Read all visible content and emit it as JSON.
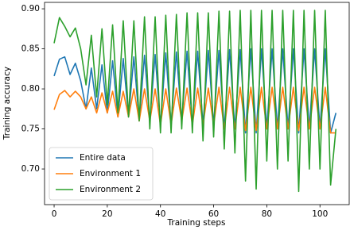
{
  "chart_data": {
    "type": "line",
    "x_label": "Training steps",
    "y_label": "Training accuracy",
    "x": [
      0,
      2,
      4,
      6,
      8,
      10,
      12,
      14,
      16,
      18,
      20,
      22,
      24,
      26,
      28,
      30,
      32,
      34,
      36,
      38,
      40,
      42,
      44,
      46,
      48,
      50,
      52,
      54,
      56,
      58,
      60,
      62,
      64,
      66,
      68,
      70,
      72,
      74,
      76,
      78,
      80,
      82,
      84,
      86,
      88,
      90,
      92,
      94,
      96,
      98,
      100,
      102,
      104,
      106
    ],
    "series": [
      {
        "name": "Entire data",
        "color": "#1f77b4",
        "values": [
          0.816,
          0.837,
          0.84,
          0.818,
          0.832,
          0.81,
          0.775,
          0.826,
          0.775,
          0.83,
          0.77,
          0.835,
          0.765,
          0.838,
          0.765,
          0.84,
          0.76,
          0.842,
          0.76,
          0.843,
          0.755,
          0.845,
          0.755,
          0.846,
          0.76,
          0.847,
          0.755,
          0.847,
          0.755,
          0.848,
          0.755,
          0.848,
          0.75,
          0.849,
          0.75,
          0.849,
          0.745,
          0.85,
          0.745,
          0.85,
          0.75,
          0.85,
          0.75,
          0.85,
          0.75,
          0.85,
          0.745,
          0.85,
          0.75,
          0.85,
          0.75,
          0.85,
          0.745,
          0.77
        ]
      },
      {
        "name": "Environment 1",
        "color": "#ff7f0e",
        "values": [
          0.774,
          0.793,
          0.798,
          0.79,
          0.797,
          0.79,
          0.775,
          0.79,
          0.77,
          0.795,
          0.77,
          0.797,
          0.765,
          0.797,
          0.765,
          0.8,
          0.76,
          0.8,
          0.76,
          0.8,
          0.755,
          0.8,
          0.755,
          0.801,
          0.76,
          0.801,
          0.755,
          0.801,
          0.755,
          0.801,
          0.755,
          0.802,
          0.75,
          0.802,
          0.75,
          0.802,
          0.748,
          0.802,
          0.748,
          0.802,
          0.75,
          0.802,
          0.75,
          0.802,
          0.75,
          0.802,
          0.748,
          0.802,
          0.75,
          0.802,
          0.75,
          0.802,
          0.745,
          0.745
        ]
      },
      {
        "name": "Environment 2",
        "color": "#2ca02c",
        "values": [
          0.857,
          0.889,
          0.878,
          0.865,
          0.876,
          0.85,
          0.805,
          0.867,
          0.79,
          0.875,
          0.78,
          0.88,
          0.77,
          0.885,
          0.765,
          0.885,
          0.76,
          0.89,
          0.75,
          0.89,
          0.745,
          0.892,
          0.745,
          0.893,
          0.75,
          0.895,
          0.745,
          0.895,
          0.735,
          0.895,
          0.74,
          0.897,
          0.725,
          0.897,
          0.72,
          0.898,
          0.685,
          0.898,
          0.675,
          0.898,
          0.71,
          0.898,
          0.7,
          0.898,
          0.71,
          0.898,
          0.672,
          0.898,
          0.7,
          0.898,
          0.7,
          0.898,
          0.68,
          0.75
        ]
      }
    ],
    "xlim": [
      -3.6,
      111
    ],
    "ylim": [
      0.6555,
      0.908
    ],
    "xticks": [
      0,
      20,
      40,
      60,
      80,
      100
    ],
    "yticks": [
      {
        "value": 0.7,
        "label": "0.70"
      },
      0.75,
      {
        "value": 0.8,
        "label": "0.80"
      },
      0.85,
      {
        "value": 0.9,
        "label": "0.90"
      }
    ],
    "legend": "lower left"
  }
}
